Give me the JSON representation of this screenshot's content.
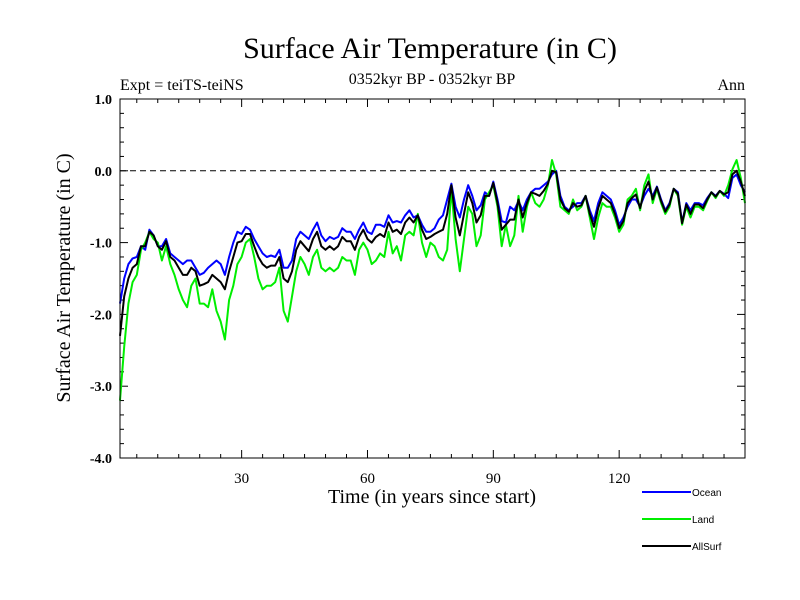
{
  "chart_data": {
    "type": "line",
    "title": "Surface Air Temperature (in C)",
    "subtitle_left": "Expt = teiTS-teiNS",
    "subtitle_center": "0352kyr BP - 0352kyr BP",
    "subtitle_right": "Ann",
    "xlabel": "Time (in years since start)",
    "ylabel": "Surface Air Temperature (in C)",
    "xlim": [
      1,
      150
    ],
    "ylim": [
      -4.0,
      1.0
    ],
    "xticks": [
      30,
      60,
      90,
      120
    ],
    "xtick_labels": [
      "30",
      "60",
      "90",
      "120"
    ],
    "yticks": [
      1.0,
      0.0,
      -1.0,
      -2.0,
      -3.0,
      -4.0
    ],
    "ytick_labels": [
      "1.0",
      "0.0",
      "-1.0",
      "-2.0",
      "-3.0",
      "-4.0"
    ],
    "reference_line": 0.0,
    "x": [
      1,
      2,
      3,
      4,
      5,
      6,
      7,
      8,
      9,
      10,
      11,
      12,
      13,
      14,
      15,
      16,
      17,
      18,
      19,
      20,
      21,
      22,
      23,
      24,
      25,
      26,
      27,
      28,
      29,
      30,
      31,
      32,
      33,
      34,
      35,
      36,
      37,
      38,
      39,
      40,
      41,
      42,
      43,
      44,
      45,
      46,
      47,
      48,
      49,
      50,
      51,
      52,
      53,
      54,
      55,
      56,
      57,
      58,
      59,
      60,
      61,
      62,
      63,
      64,
      65,
      66,
      67,
      68,
      69,
      70,
      71,
      72,
      73,
      74,
      75,
      76,
      77,
      78,
      79,
      80,
      81,
      82,
      83,
      84,
      85,
      86,
      87,
      88,
      89,
      90,
      91,
      92,
      93,
      94,
      95,
      96,
      97,
      98,
      99,
      100,
      101,
      102,
      103,
      104,
      105,
      106,
      107,
      108,
      109,
      110,
      111,
      112,
      113,
      114,
      115,
      116,
      117,
      118,
      119,
      120,
      121,
      122,
      123,
      124,
      125,
      126,
      127,
      128,
      129,
      130,
      131,
      132,
      133,
      134,
      135,
      136,
      137,
      138,
      139,
      140,
      141,
      142,
      143,
      144,
      145,
      146,
      147,
      148,
      149,
      150
    ],
    "series": [
      {
        "name": "Ocean",
        "color": "#0000ff",
        "values": [
          -1.85,
          -1.5,
          -1.3,
          -1.22,
          -1.2,
          -1.05,
          -1.1,
          -0.82,
          -0.9,
          -1.05,
          -1.05,
          -0.95,
          -1.15,
          -1.2,
          -1.25,
          -1.3,
          -1.25,
          -1.25,
          -1.35,
          -1.45,
          -1.42,
          -1.35,
          -1.3,
          -1.25,
          -1.3,
          -1.45,
          -1.2,
          -1.0,
          -0.85,
          -0.88,
          -0.78,
          -0.82,
          -0.95,
          -1.05,
          -1.15,
          -1.2,
          -1.18,
          -1.2,
          -1.1,
          -1.35,
          -1.35,
          -1.25,
          -0.95,
          -0.85,
          -0.9,
          -0.95,
          -0.82,
          -0.72,
          -0.9,
          -0.98,
          -0.92,
          -0.95,
          -0.92,
          -0.8,
          -0.85,
          -0.85,
          -0.95,
          -0.82,
          -0.72,
          -0.85,
          -0.88,
          -0.75,
          -0.75,
          -0.78,
          -0.62,
          -0.72,
          -0.7,
          -0.72,
          -0.62,
          -0.55,
          -0.65,
          -0.62,
          -0.75,
          -0.85,
          -0.85,
          -0.8,
          -0.68,
          -0.62,
          -0.4,
          -0.18,
          -0.5,
          -0.65,
          -0.4,
          -0.2,
          -0.35,
          -0.55,
          -0.48,
          -0.3,
          -0.35,
          -0.15,
          -0.4,
          -0.7,
          -0.72,
          -0.5,
          -0.55,
          -0.42,
          -0.55,
          -0.4,
          -0.3,
          -0.25,
          -0.25,
          -0.2,
          -0.15,
          -0.05,
          0.0,
          -0.35,
          -0.5,
          -0.55,
          -0.5,
          -0.45,
          -0.45,
          -0.35,
          -0.55,
          -0.7,
          -0.45,
          -0.3,
          -0.35,
          -0.4,
          -0.55,
          -0.75,
          -0.65,
          -0.5,
          -0.4,
          -0.4,
          -0.5,
          -0.35,
          -0.25,
          -0.35,
          -0.22,
          -0.4,
          -0.55,
          -0.45,
          -0.25,
          -0.3,
          -0.72,
          -0.45,
          -0.55,
          -0.45,
          -0.45,
          -0.48,
          -0.38,
          -0.3,
          -0.35,
          -0.28,
          -0.32,
          -0.38,
          -0.1,
          -0.05,
          -0.2,
          -0.3
        ],
        "legend_label": "Ocean"
      },
      {
        "name": "Land",
        "color": "#00ee00",
        "values": [
          -3.2,
          -2.45,
          -1.85,
          -1.55,
          -1.45,
          -1.1,
          -1.0,
          -0.85,
          -0.95,
          -1.0,
          -1.25,
          -1.05,
          -1.3,
          -1.45,
          -1.65,
          -1.8,
          -1.9,
          -1.6,
          -1.5,
          -1.85,
          -1.85,
          -1.9,
          -1.65,
          -1.95,
          -2.1,
          -2.35,
          -1.8,
          -1.6,
          -1.3,
          -1.2,
          -1.0,
          -0.95,
          -1.2,
          -1.5,
          -1.65,
          -1.6,
          -1.6,
          -1.55,
          -1.35,
          -1.95,
          -2.1,
          -1.75,
          -1.4,
          -1.2,
          -1.3,
          -1.45,
          -1.2,
          -1.1,
          -1.35,
          -1.4,
          -1.35,
          -1.4,
          -1.35,
          -1.2,
          -1.25,
          -1.25,
          -1.45,
          -1.1,
          -1.0,
          -1.1,
          -1.3,
          -1.25,
          -1.15,
          -1.2,
          -0.85,
          -1.15,
          -1.05,
          -1.25,
          -0.9,
          -0.85,
          -0.9,
          -0.6,
          -1.0,
          -1.2,
          -1.0,
          -1.05,
          -1.2,
          -1.25,
          -1.1,
          -0.25,
          -0.95,
          -1.4,
          -0.95,
          -0.5,
          -0.6,
          -1.05,
          -0.9,
          -0.4,
          -0.3,
          -0.2,
          -0.5,
          -1.05,
          -0.75,
          -1.05,
          -0.9,
          -0.35,
          -0.85,
          -0.5,
          -0.3,
          -0.45,
          -0.5,
          -0.4,
          -0.2,
          0.15,
          -0.05,
          -0.5,
          -0.55,
          -0.6,
          -0.4,
          -0.55,
          -0.5,
          -0.35,
          -0.65,
          -0.95,
          -0.65,
          -0.45,
          -0.5,
          -0.5,
          -0.65,
          -0.85,
          -0.75,
          -0.4,
          -0.35,
          -0.25,
          -0.55,
          -0.2,
          -0.05,
          -0.45,
          -0.25,
          -0.45,
          -0.6,
          -0.5,
          -0.25,
          -0.35,
          -0.75,
          -0.5,
          -0.65,
          -0.5,
          -0.5,
          -0.55,
          -0.42,
          -0.3,
          -0.38,
          -0.28,
          -0.35,
          -0.2,
          0.02,
          0.15,
          -0.1,
          -0.45
        ],
        "legend_label": "Land"
      },
      {
        "name": "AllSurf",
        "color": "#000000",
        "values": [
          -2.3,
          -1.75,
          -1.5,
          -1.35,
          -1.3,
          -1.05,
          -1.05,
          -0.85,
          -0.9,
          -1.05,
          -1.1,
          -0.98,
          -1.2,
          -1.25,
          -1.35,
          -1.45,
          -1.45,
          -1.35,
          -1.4,
          -1.6,
          -1.58,
          -1.55,
          -1.45,
          -1.5,
          -1.55,
          -1.65,
          -1.4,
          -1.2,
          -1.0,
          -0.98,
          -0.88,
          -0.88,
          -1.05,
          -1.2,
          -1.3,
          -1.35,
          -1.32,
          -1.32,
          -1.2,
          -1.5,
          -1.55,
          -1.4,
          -1.1,
          -0.98,
          -1.05,
          -1.12,
          -0.95,
          -0.85,
          -1.05,
          -1.1,
          -1.05,
          -1.1,
          -1.05,
          -0.92,
          -0.98,
          -0.98,
          -1.1,
          -0.92,
          -0.82,
          -0.95,
          -1.0,
          -0.92,
          -0.88,
          -0.92,
          -0.72,
          -0.85,
          -0.82,
          -0.88,
          -0.72,
          -0.65,
          -0.72,
          -0.62,
          -0.82,
          -0.95,
          -0.92,
          -0.88,
          -0.85,
          -0.82,
          -0.6,
          -0.2,
          -0.65,
          -0.9,
          -0.6,
          -0.3,
          -0.45,
          -0.72,
          -0.62,
          -0.35,
          -0.35,
          -0.17,
          -0.45,
          -0.82,
          -0.75,
          -0.68,
          -0.68,
          -0.4,
          -0.65,
          -0.45,
          -0.3,
          -0.32,
          -0.35,
          -0.28,
          -0.18,
          0.0,
          -0.02,
          -0.4,
          -0.52,
          -0.57,
          -0.45,
          -0.5,
          -0.48,
          -0.35,
          -0.6,
          -0.78,
          -0.52,
          -0.35,
          -0.4,
          -0.45,
          -0.6,
          -0.8,
          -0.7,
          -0.45,
          -0.38,
          -0.33,
          -0.52,
          -0.28,
          -0.15,
          -0.4,
          -0.23,
          -0.42,
          -0.57,
          -0.47,
          -0.25,
          -0.32,
          -0.73,
          -0.47,
          -0.6,
          -0.47,
          -0.47,
          -0.52,
          -0.4,
          -0.3,
          -0.36,
          -0.28,
          -0.33,
          -0.3,
          -0.05,
          0.0,
          -0.15,
          -0.35
        ],
        "legend_label": "AllSurf"
      }
    ]
  }
}
